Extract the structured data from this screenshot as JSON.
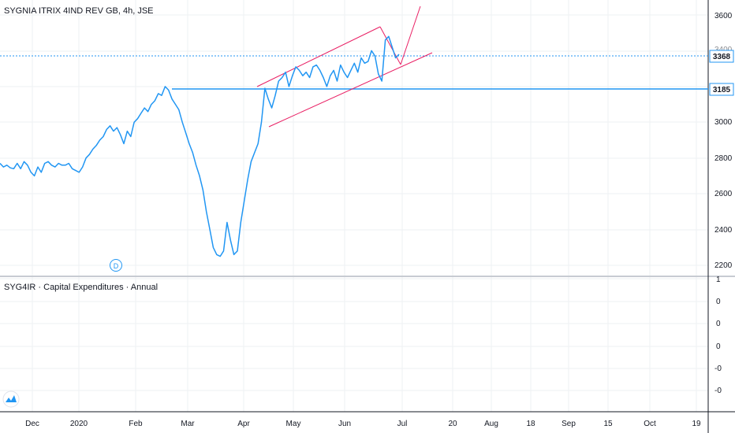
{
  "main_chart": {
    "title": "SYGNIA ITRIX 4IND REV GB, 4h, JSE",
    "price_labels": [
      "3600",
      "3400",
      "3000",
      "2800",
      "2600",
      "2400",
      "2200"
    ],
    "price_tags": [
      {
        "value": "3368",
        "type": "dotted"
      },
      {
        "value": "3185",
        "type": "solid"
      }
    ],
    "dividend_marker": "D"
  },
  "indicator_pane": {
    "title": "SYG4IR · Capital Expenditures · Annual",
    "labels": [
      "1",
      "0",
      "0",
      "0",
      "-0",
      "-0"
    ]
  },
  "time_axis": {
    "labels": [
      "Dec",
      "2020",
      "Feb",
      "Mar",
      "Apr",
      "May",
      "Jun",
      "Jul",
      "20",
      "Aug",
      "18",
      "Sep",
      "15",
      "Oct",
      "19"
    ]
  },
  "colors": {
    "price_line": "#2196f3",
    "channel": "#e91e63",
    "grid": "#eef0f3",
    "axis_border": "#131722"
  },
  "chart_data": {
    "type": "line",
    "title": "SYGNIA ITRIX 4IND REV GB, 4h, JSE",
    "xlabel": "",
    "ylabel": "",
    "ylim": [
      2160,
      3660
    ],
    "y_ticks": [
      2200,
      2400,
      2600,
      2800,
      3000,
      3400,
      3600
    ],
    "horizontal_levels": [
      3368,
      3185
    ],
    "series": [
      {
        "values": [
          2770,
          2750,
          2760,
          2745,
          2740,
          2770,
          2740,
          2780,
          2760,
          2720,
          2700,
          2750,
          2720,
          2770,
          2780,
          2760,
          2750,
          2770,
          2760,
          2760,
          2770,
          2740,
          2730,
          2720,
          2750,
          2800,
          2820,
          2850,
          2870,
          2900,
          2920,
          2960,
          2980,
          2950,
          2970,
          2930,
          2880,
          2950,
          2920,
          3000,
          3020,
          3050,
          3080,
          3060,
          3100,
          3120,
          3160,
          3150,
          3200,
          3180,
          3130,
          3100,
          3070,
          3000,
          2940,
          2880,
          2830,
          2760,
          2700,
          2620,
          2500,
          2400,
          2300,
          2260,
          2250,
          2280,
          2440,
          2340,
          2260,
          2280,
          2440,
          2560,
          2680,
          2780,
          2830,
          2880,
          3000,
          3190,
          3130,
          3080,
          3150,
          3230,
          3250,
          3280,
          3200,
          3260,
          3310,
          3290,
          3260,
          3280,
          3250,
          3310,
          3320,
          3290,
          3250,
          3200,
          3260,
          3290,
          3230,
          3320,
          3280,
          3250,
          3290,
          3330,
          3280,
          3360,
          3330,
          3340,
          3400,
          3370,
          3270,
          3230,
          3460,
          3480,
          3420,
          3360,
          3380
        ]
      }
    ],
    "annotations": [
      "ascending channel",
      "projection lines",
      "dividend marker D"
    ]
  }
}
